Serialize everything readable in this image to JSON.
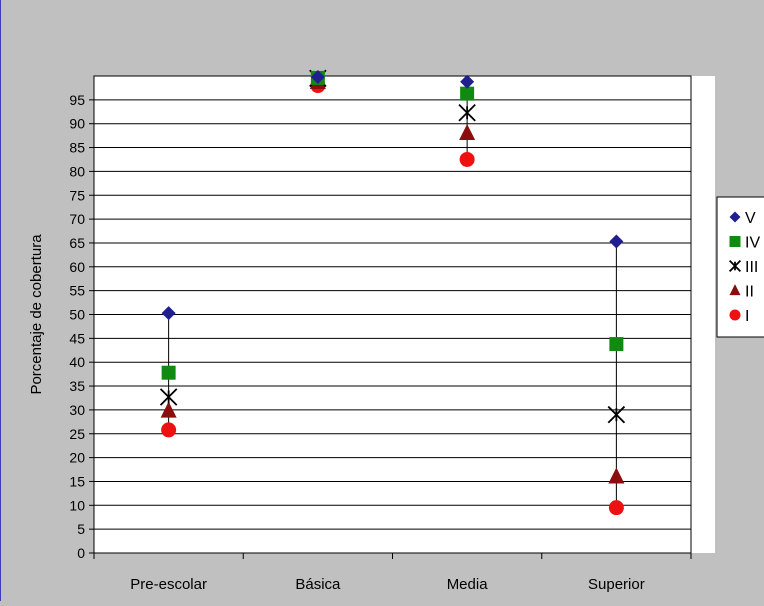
{
  "chart_data": {
    "type": "scatter",
    "title": "",
    "xlabel": "",
    "ylabel": "Porcentaje de cobertura",
    "categories": [
      "Pre-escolar",
      "Básica",
      "Media",
      "Superior"
    ],
    "ylim": [
      0,
      100
    ],
    "yticks": [
      0,
      5,
      10,
      15,
      20,
      25,
      30,
      35,
      40,
      45,
      50,
      55,
      60,
      65,
      70,
      75,
      80,
      85,
      90,
      95
    ],
    "grid": true,
    "legend_position": "right",
    "high_low_lines": true,
    "series": [
      {
        "name": "V",
        "marker": "diamond",
        "color": "#1f1f8f",
        "values": [
          50.3,
          99.8,
          98.8,
          65.3
        ]
      },
      {
        "name": "IV",
        "marker": "square",
        "color": "#118a11",
        "values": [
          37.8,
          99.6,
          96.3,
          43.8
        ]
      },
      {
        "name": "III",
        "marker": "asterisk",
        "color": "#000000",
        "values": [
          32.7,
          99.5,
          92.3,
          29.0
        ]
      },
      {
        "name": "II",
        "marker": "triangle",
        "color": "#8b0d0d",
        "values": [
          29.8,
          98.7,
          88.0,
          16.0
        ]
      },
      {
        "name": "I",
        "marker": "circle",
        "color": "#ee1111",
        "values": [
          25.8,
          98.0,
          82.5,
          9.5
        ]
      }
    ]
  }
}
